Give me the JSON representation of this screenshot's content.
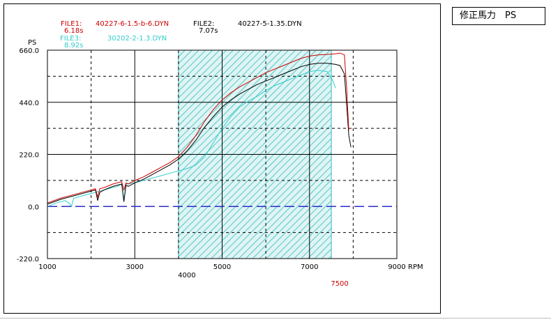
{
  "side_box": {
    "text": "修正馬力　PS"
  },
  "chart_data": {
    "type": "line",
    "y_unit": "PS",
    "x_unit": "RPM",
    "xlim": [
      1000,
      9000
    ],
    "ylim": [
      -220,
      660
    ],
    "x_ticks": [
      1000,
      3000,
      5000,
      7000,
      9000
    ],
    "x_tick_labels": [
      "1000",
      "3000",
      "5000",
      "7000",
      "9000"
    ],
    "y_ticks": [
      -220,
      0,
      220,
      440,
      660
    ],
    "y_tick_labels": [
      "-220.0",
      "0.0",
      "220.0",
      "440.0",
      "660.0"
    ],
    "grid": true,
    "highlight_range": [
      4000,
      7500
    ],
    "highlight_labels": {
      "start": "4000",
      "end": "7500"
    },
    "colors": {
      "file1": "#cc0000",
      "file2": "#000000",
      "file3": "#33cccc",
      "highlight": "#33bbbb",
      "baseline": "#2a2ad0"
    },
    "files": [
      {
        "label": "FILE1:",
        "name": "40227-6-1.5-b-6.DYN",
        "time": "6.18s"
      },
      {
        "label": "FILE2:",
        "name": "40227-5-1.35.DYN",
        "time": "7.07s"
      },
      {
        "label": "FILE3:",
        "name": "30202-2-1.3.DYN",
        "time": "8.92s"
      }
    ],
    "series": [
      {
        "color": "#cc0000",
        "x": [
          1000,
          1300,
          1600,
          1900,
          2100,
          2150,
          2200,
          2300,
          2500,
          2700,
          2750,
          2800,
          2850,
          3000,
          3200,
          3400,
          3600,
          3800,
          4000,
          4200,
          4400,
          4600,
          4800,
          5000,
          5200,
          5400,
          5600,
          5800,
          6000,
          6200,
          6400,
          6600,
          6800,
          7000,
          7200,
          7400,
          7600,
          7700,
          7800,
          7850,
          7900
        ],
        "y": [
          15,
          35,
          50,
          65,
          75,
          40,
          75,
          80,
          95,
          105,
          70,
          100,
          95,
          110,
          125,
          145,
          165,
          185,
          210,
          250,
          300,
          360,
          410,
          450,
          480,
          505,
          525,
          545,
          565,
          580,
          595,
          610,
          625,
          635,
          640,
          642,
          645,
          648,
          640,
          500,
          320
        ]
      },
      {
        "color": "#000000",
        "x": [
          1000,
          1300,
          1600,
          1900,
          2100,
          2150,
          2200,
          2300,
          2500,
          2700,
          2750,
          2800,
          2850,
          3000,
          3200,
          3400,
          3600,
          3800,
          4000,
          4200,
          4400,
          4600,
          4800,
          5000,
          5200,
          5400,
          5600,
          5800,
          6000,
          6200,
          6400,
          6600,
          6800,
          7000,
          7200,
          7400,
          7600,
          7700,
          7800,
          7850,
          7900,
          7950
        ],
        "y": [
          10,
          30,
          45,
          60,
          70,
          25,
          60,
          70,
          85,
          95,
          20,
          90,
          85,
          100,
          115,
          135,
          155,
          175,
          200,
          235,
          280,
          335,
          380,
          420,
          450,
          475,
          495,
          515,
          530,
          545,
          560,
          575,
          590,
          600,
          605,
          605,
          600,
          595,
          560,
          430,
          300,
          250
        ]
      },
      {
        "color": "#33cccc",
        "x": [
          1000,
          1200,
          1400,
          1500,
          1550,
          1600,
          1800,
          2000,
          2200,
          2400,
          2600,
          2700,
          2750,
          2800,
          3000,
          3200,
          3400,
          3600,
          3800,
          4000,
          4200,
          4400,
          4600,
          4800,
          5000,
          5200,
          5400,
          5600,
          5800,
          6000,
          6200,
          6400,
          6600,
          6800,
          7000,
          7200,
          7400,
          7500,
          7600
        ],
        "y": [
          0,
          15,
          25,
          15,
          0,
          35,
          45,
          55,
          65,
          75,
          85,
          95,
          30,
          95,
          100,
          110,
          120,
          130,
          140,
          150,
          160,
          175,
          210,
          270,
          330,
          380,
          420,
          445,
          465,
          490,
          510,
          525,
          540,
          555,
          570,
          575,
          570,
          545,
          500
        ]
      }
    ]
  }
}
